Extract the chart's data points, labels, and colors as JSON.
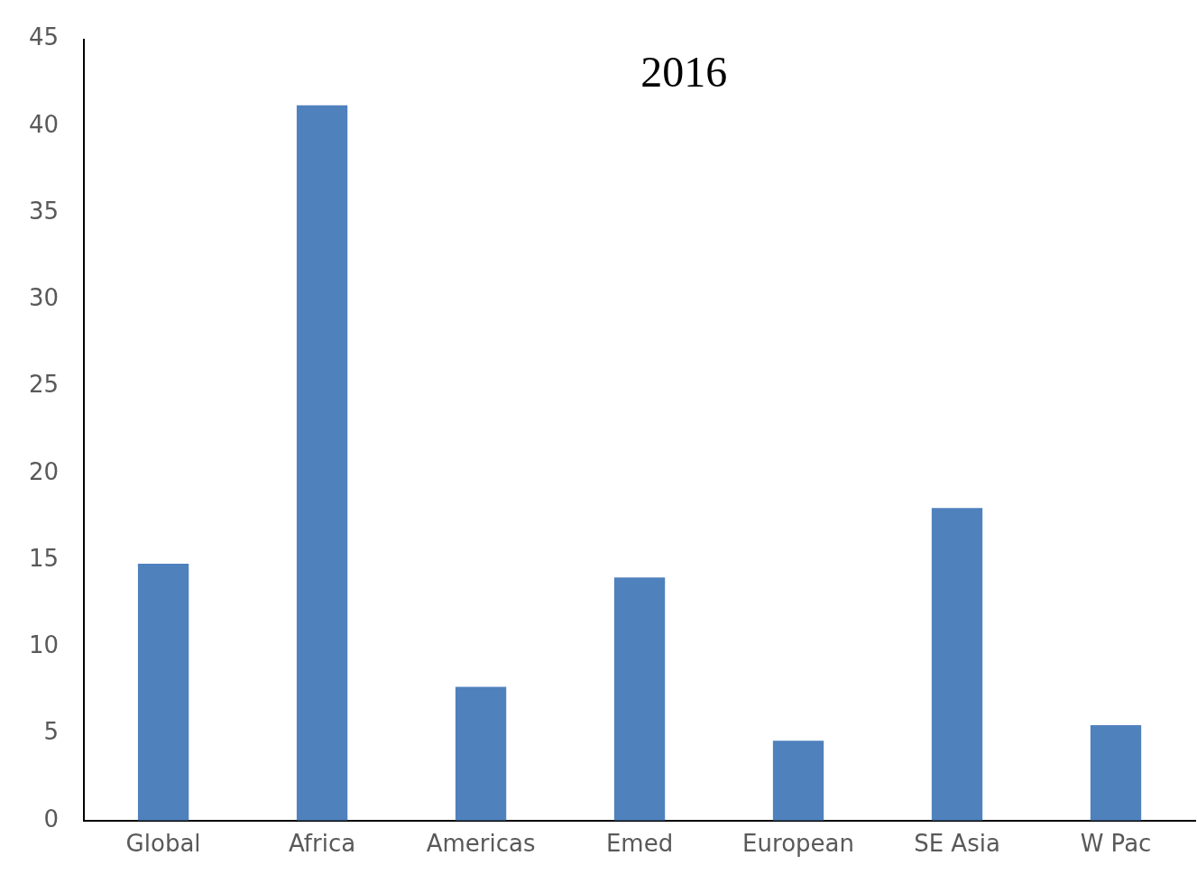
{
  "chart_data": {
    "type": "bar",
    "title": "2016",
    "categories": [
      "Global",
      "Africa",
      "Americas",
      "Emed",
      "European",
      "SE Asia",
      "W Pac"
    ],
    "values": [
      14.8,
      41.2,
      7.7,
      14.0,
      4.6,
      18.0,
      5.5
    ],
    "color": "#4f81bd",
    "ylim": [
      0,
      45
    ],
    "yticks": [
      0,
      5,
      10,
      15,
      20,
      25,
      30,
      35,
      40,
      45
    ],
    "grid": false,
    "legend": false
  }
}
